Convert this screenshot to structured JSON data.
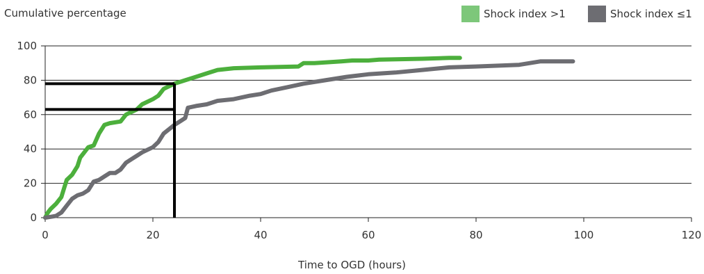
{
  "chart_data": {
    "type": "line",
    "ylabel": "Cumulative percentage",
    "xlabel": "Time to OGD (hours)",
    "xlim": [
      0,
      120
    ],
    "ylim": [
      0,
      100
    ],
    "xticks": [
      0,
      20,
      40,
      60,
      80,
      100,
      120
    ],
    "yticks": [
      0,
      20,
      40,
      60,
      80,
      100
    ],
    "grid": "horizontal",
    "legend_position": "top-right",
    "series": [
      {
        "name": "Shock index >1",
        "color": "#4caf3c",
        "legend_color": "#7dc77a",
        "points": [
          [
            0,
            0
          ],
          [
            0.5,
            3
          ],
          [
            1,
            5
          ],
          [
            2,
            8
          ],
          [
            3,
            12
          ],
          [
            3.5,
            17
          ],
          [
            4,
            22
          ],
          [
            5,
            25
          ],
          [
            6,
            30
          ],
          [
            6.5,
            35
          ],
          [
            7,
            37
          ],
          [
            8,
            41
          ],
          [
            9,
            42
          ],
          [
            10,
            49
          ],
          [
            11,
            54
          ],
          [
            12,
            55
          ],
          [
            14,
            56
          ],
          [
            15,
            60
          ],
          [
            17,
            63
          ],
          [
            18,
            66
          ],
          [
            20,
            69
          ],
          [
            21,
            71
          ],
          [
            22,
            75
          ],
          [
            24,
            78
          ],
          [
            26,
            80
          ],
          [
            28,
            82
          ],
          [
            30,
            84
          ],
          [
            32,
            86
          ],
          [
            35,
            87
          ],
          [
            40,
            87.5
          ],
          [
            47,
            88
          ],
          [
            48,
            90
          ],
          [
            50,
            90
          ],
          [
            55,
            91
          ],
          [
            57,
            91.5
          ],
          [
            60,
            91.5
          ],
          [
            62,
            92
          ],
          [
            70,
            92.5
          ],
          [
            75,
            93
          ],
          [
            77,
            93
          ]
        ]
      },
      {
        "name": "Shock index ≤1",
        "color": "#6d6d72",
        "legend_color": "#6d6d72",
        "points": [
          [
            0,
            0
          ],
          [
            1,
            0.5
          ],
          [
            2,
            1
          ],
          [
            3,
            3
          ],
          [
            4,
            7
          ],
          [
            5,
            11
          ],
          [
            6,
            13
          ],
          [
            7,
            14
          ],
          [
            8,
            16
          ],
          [
            9,
            21
          ],
          [
            10,
            22
          ],
          [
            11,
            24
          ],
          [
            12,
            26
          ],
          [
            13,
            26
          ],
          [
            14,
            28
          ],
          [
            15,
            32
          ],
          [
            16,
            34
          ],
          [
            17,
            36
          ],
          [
            18,
            38
          ],
          [
            20,
            41
          ],
          [
            21,
            44
          ],
          [
            22,
            49
          ],
          [
            24,
            54
          ],
          [
            25,
            56
          ],
          [
            26,
            58
          ],
          [
            26.5,
            64
          ],
          [
            28,
            65
          ],
          [
            30,
            66
          ],
          [
            32,
            68
          ],
          [
            35,
            69
          ],
          [
            38,
            71
          ],
          [
            40,
            72
          ],
          [
            42,
            74
          ],
          [
            45,
            76
          ],
          [
            48,
            78
          ],
          [
            52,
            80
          ],
          [
            56,
            82
          ],
          [
            60,
            83.5
          ],
          [
            65,
            84.5
          ],
          [
            70,
            86
          ],
          [
            75,
            87.5
          ],
          [
            80,
            88
          ],
          [
            88,
            89
          ],
          [
            90,
            90
          ],
          [
            92,
            91
          ],
          [
            98,
            91
          ]
        ]
      }
    ],
    "reference_lines": [
      {
        "x": 24,
        "y": 78
      },
      {
        "x": 24,
        "y": 63
      }
    ],
    "reference_color": "#000000"
  }
}
